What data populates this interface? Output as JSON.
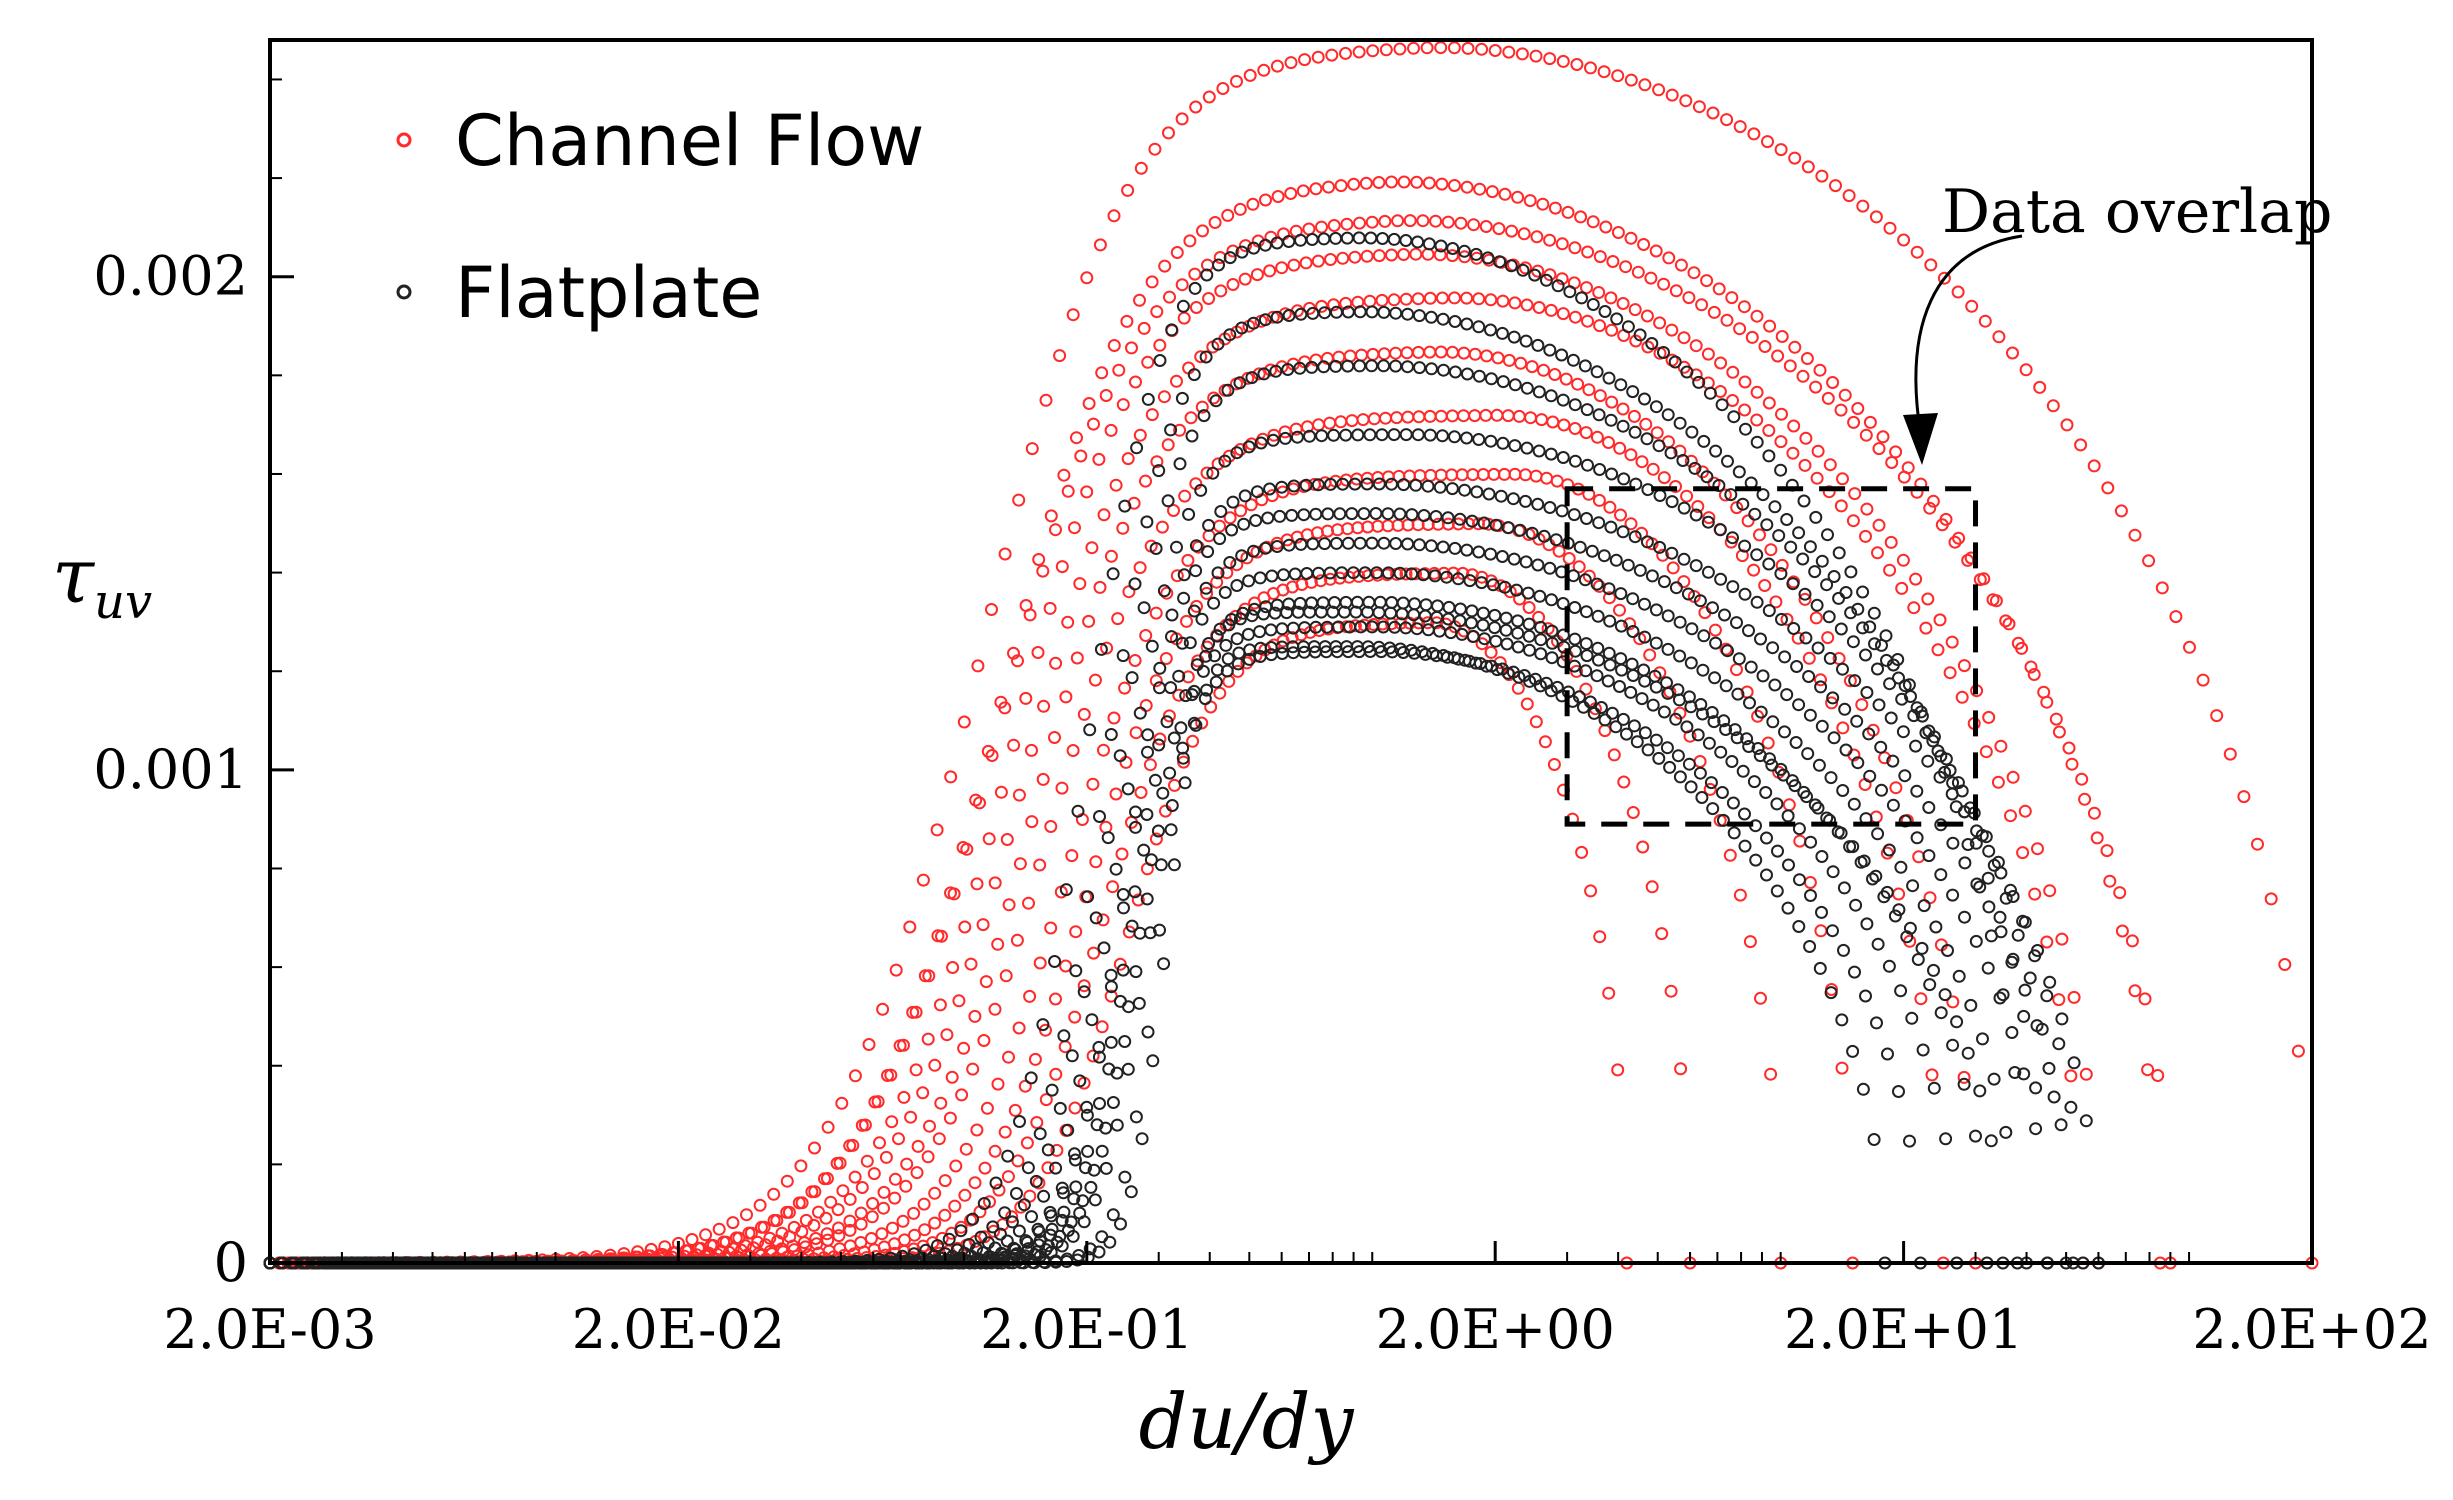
{
  "chart_data": {
    "type": "scatter",
    "title": "",
    "xlabel": "du/dy",
    "ylabel": "τ",
    "ylabel_subscript": "uv",
    "x_scale": "log",
    "xlim": [
      0.002,
      200
    ],
    "ylim": [
      0,
      0.00248
    ],
    "x_ticks": [
      0.002,
      0.02,
      0.2,
      2,
      20,
      200
    ],
    "x_tick_labels": [
      "2.0E-03",
      "2.0E-02",
      "2.0E-01",
      "2.0E+00",
      "2.0E+01",
      "2.0E+02"
    ],
    "y_ticks": [
      0,
      0.001,
      0.002
    ],
    "y_tick_labels": [
      "0",
      "0.001",
      "0.002"
    ],
    "legend_position": "top-left",
    "colors": {
      "channel": "#ff2a2a",
      "flatplate": "#222222"
    },
    "series": [
      {
        "name": "Channel Flow",
        "marker": "open-circle",
        "color": "#ff2a2a",
        "curves": [
          {
            "peak": 0.00247,
            "peak_x": 1.3,
            "rise_center": 0.11,
            "rise_width": 0.9,
            "x_end": 200
          },
          {
            "peak": 0.0022,
            "peak_x": 1.0,
            "rise_center": 0.12,
            "rise_width": 0.85,
            "x_end": 85
          },
          {
            "peak": 0.00212,
            "peak_x": 1.1,
            "rise_center": 0.12,
            "rise_width": 0.85,
            "x_end": 90
          },
          {
            "peak": 0.00205,
            "peak_x": 1.2,
            "rise_center": 0.13,
            "rise_width": 0.8,
            "x_end": 60
          },
          {
            "peak": 0.00196,
            "peak_x": 1.5,
            "rise_center": 0.14,
            "rise_width": 0.8,
            "x_end": 55
          },
          {
            "peak": 0.00185,
            "peak_x": 1.4,
            "rise_center": 0.15,
            "rise_width": 0.75,
            "x_end": 30
          },
          {
            "peak": 0.00172,
            "peak_x": 2.0,
            "rise_center": 0.16,
            "rise_width": 0.75,
            "x_end": 25
          },
          {
            "peak": 0.0016,
            "peak_x": 2.2,
            "rise_center": 0.18,
            "rise_width": 0.7,
            "x_end": 15
          },
          {
            "peak": 0.0015,
            "peak_x": 1.8,
            "rise_center": 0.2,
            "rise_width": 0.65,
            "x_end": 10
          },
          {
            "peak": 0.0014,
            "peak_x": 1.6,
            "rise_center": 0.22,
            "rise_width": 0.6,
            "x_end": 6
          },
          {
            "peak": 0.0013,
            "peak_x": 1.4,
            "rise_center": 0.25,
            "rise_width": 0.55,
            "x_end": 4.2
          }
        ]
      },
      {
        "name": "Flatplate",
        "marker": "open-circle",
        "color": "#222222",
        "curves": [
          {
            "peak": 0.00208,
            "peak_x": 0.9,
            "rise_center": 0.2,
            "rise_width": 0.45,
            "x_end": 40
          },
          {
            "peak": 0.00193,
            "peak_x": 0.9,
            "rise_center": 0.22,
            "rise_width": 0.42,
            "x_end": 45
          },
          {
            "peak": 0.00182,
            "peak_x": 1.0,
            "rise_center": 0.23,
            "rise_width": 0.4,
            "x_end": 50
          },
          {
            "peak": 0.00168,
            "peak_x": 1.2,
            "rise_center": 0.24,
            "rise_width": 0.38,
            "x_end": 55
          },
          {
            "peak": 0.00158,
            "peak_x": 1.0,
            "rise_center": 0.25,
            "rise_width": 0.35,
            "x_end": 60
          },
          {
            "peak": 0.00152,
            "peak_x": 1.0,
            "rise_center": 0.25,
            "rise_width": 0.34,
            "x_end": 52
          },
          {
            "peak": 0.00146,
            "peak_x": 1.0,
            "rise_center": 0.26,
            "rise_width": 0.33,
            "x_end": 45
          },
          {
            "peak": 0.0014,
            "peak_x": 1.0,
            "rise_center": 0.26,
            "rise_width": 0.32,
            "x_end": 38
          },
          {
            "peak": 0.00134,
            "peak_x": 1.0,
            "rise_center": 0.27,
            "rise_width": 0.31,
            "x_end": 32
          },
          {
            "peak": 0.00129,
            "peak_x": 1.0,
            "rise_center": 0.27,
            "rise_width": 0.3,
            "x_end": 27
          },
          {
            "peak": 0.00124,
            "peak_x": 1.0,
            "rise_center": 0.28,
            "rise_width": 0.29,
            "x_end": 22
          },
          {
            "peak": 0.00132,
            "peak_x": 0.9,
            "rise_center": 0.3,
            "rise_width": 0.22,
            "x_end": 35
          },
          {
            "peak": 0.00125,
            "peak_x": 0.9,
            "rise_center": 0.31,
            "rise_width": 0.2,
            "x_end": 18
          }
        ]
      }
    ],
    "annotations": [
      {
        "text": "Data overlap",
        "type": "dashed-box-with-arrow",
        "box_x_range": [
          3.0,
          30
        ],
        "box_y_range": [
          0.00089,
          0.00157
        ]
      }
    ]
  }
}
